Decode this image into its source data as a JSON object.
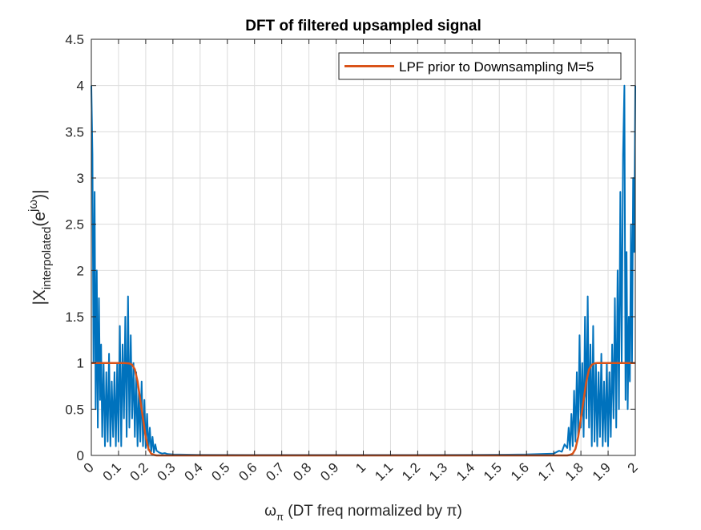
{
  "chart_data": {
    "type": "line",
    "title": "DFT of filtered upsampled signal",
    "xlabel": {
      "symbol": "ω",
      "subscript": "π",
      "text": " (DT freq normalized by π)"
    },
    "ylabel": {
      "prefix": "|X",
      "subscript": "interpolated",
      "middle": "(e",
      "superscript": "jω",
      "suffix": ")|"
    },
    "xlim": [
      0,
      2
    ],
    "ylim": [
      0,
      4.5
    ],
    "xticks": [
      0,
      0.1,
      0.2,
      0.3,
      0.4,
      0.5,
      0.6,
      0.7,
      0.8,
      0.9,
      1,
      1.1,
      1.2,
      1.3,
      1.4,
      1.5,
      1.6,
      1.7,
      1.8,
      1.9,
      2
    ],
    "xticklabels": [
      "0",
      "0.1",
      "0.2",
      "0.3",
      "0.4",
      "0.5",
      "0.6",
      "0.7",
      "0.8",
      "0.9",
      "1",
      "1.1",
      "1.2",
      "1.3",
      "1.4",
      "1.5",
      "1.6",
      "1.7",
      "1.8",
      "1.9",
      "2"
    ],
    "yticks": [
      0,
      0.5,
      1,
      1.5,
      2,
      2.5,
      3,
      3.5,
      4,
      4.5
    ],
    "yticklabels": [
      "0",
      "0.5",
      "1",
      "1.5",
      "2",
      "2.5",
      "3",
      "3.5",
      "4",
      "4.5"
    ],
    "grid": true,
    "legend_position": "top-right",
    "series": [
      {
        "style": "spectrum",
        "color": "#0072BD",
        "x": [
          0,
          0.004,
          0.008,
          0.012,
          0.016,
          0.02,
          0.024,
          0.028,
          0.032,
          0.036,
          0.04,
          0.045,
          0.05,
          0.055,
          0.06,
          0.065,
          0.07,
          0.075,
          0.08,
          0.085,
          0.09,
          0.095,
          0.1,
          0.105,
          0.11,
          0.115,
          0.12,
          0.125,
          0.13,
          0.135,
          0.14,
          0.145,
          0.15,
          0.155,
          0.16,
          0.165,
          0.17,
          0.175,
          0.18,
          0.185,
          0.19,
          0.195,
          0.2,
          0.205,
          0.21,
          0.215,
          0.22,
          0.225,
          0.23,
          0.235,
          0.24,
          0.25,
          0.26,
          0.27,
          0.28,
          0.3,
          0.4,
          0.6,
          0.8,
          1.0,
          1.2,
          1.4,
          1.6,
          1.7,
          1.72,
          1.73,
          1.74,
          1.75,
          1.755,
          1.76,
          1.765,
          1.77,
          1.775,
          1.78,
          1.785,
          1.79,
          1.795,
          1.8,
          1.805,
          1.81,
          1.815,
          1.82,
          1.825,
          1.83,
          1.835,
          1.84,
          1.845,
          1.85,
          1.855,
          1.86,
          1.865,
          1.87,
          1.875,
          1.88,
          1.885,
          1.89,
          1.895,
          1.9,
          1.905,
          1.91,
          1.915,
          1.92,
          1.925,
          1.93,
          1.935,
          1.94,
          1.945,
          1.95,
          1.955,
          1.96,
          1.964,
          1.968,
          1.972,
          1.976,
          1.98,
          1.984,
          1.988,
          1.992,
          1.996,
          2.0
        ],
        "values": [
          4.0,
          3.25,
          1.0,
          2.85,
          0.5,
          2.0,
          0.3,
          1.7,
          0.6,
          1.2,
          0.2,
          1.0,
          0.1,
          0.9,
          0.15,
          1.1,
          0.1,
          0.8,
          0.2,
          0.9,
          0.1,
          1.0,
          0.15,
          1.4,
          0.1,
          1.2,
          0.4,
          1.5,
          0.2,
          1.72,
          0.3,
          1.3,
          0.4,
          1.0,
          0.2,
          0.9,
          0.1,
          0.7,
          0.15,
          0.8,
          0.1,
          0.6,
          0.08,
          0.45,
          0.06,
          0.3,
          0.04,
          0.2,
          0.03,
          0.12,
          0.05,
          0.03,
          0.02,
          0.025,
          0.015,
          0.01,
          0.006,
          0.005,
          0.005,
          0.005,
          0.005,
          0.006,
          0.01,
          0.02,
          0.05,
          0.04,
          0.12,
          0.08,
          0.3,
          0.06,
          0.45,
          0.1,
          0.7,
          0.15,
          0.9,
          0.2,
          1.3,
          0.3,
          1.0,
          0.2,
          1.5,
          0.4,
          1.72,
          0.3,
          1.2,
          0.1,
          1.4,
          0.15,
          1.0,
          0.1,
          0.9,
          0.2,
          1.1,
          0.1,
          0.8,
          0.15,
          1.0,
          0.1,
          0.9,
          0.2,
          1.2,
          0.4,
          1.7,
          0.3,
          2.0,
          0.5,
          2.85,
          1.0,
          3.25,
          4.0,
          0.6,
          2.2,
          0.5,
          1.5,
          0.8,
          2.5,
          1.0,
          3.0,
          2.2,
          4.0
        ]
      },
      {
        "name": "LPF prior to Downsampling M=5",
        "style": "smooth",
        "color": "#D95319",
        "x": [
          0,
          0.05,
          0.1,
          0.12,
          0.14,
          0.15,
          0.16,
          0.17,
          0.18,
          0.19,
          0.2,
          0.21,
          0.22,
          0.23,
          0.24,
          0.25,
          0.3,
          0.5,
          1.0,
          1.5,
          1.7,
          1.75,
          1.76,
          1.77,
          1.78,
          1.79,
          1.8,
          1.81,
          1.82,
          1.83,
          1.84,
          1.85,
          1.86,
          1.88,
          1.9,
          1.95,
          2.0
        ],
        "values": [
          1,
          1,
          1,
          1,
          0.995,
          0.98,
          0.93,
          0.8,
          0.6,
          0.4,
          0.2,
          0.07,
          0.02,
          0.005,
          0,
          0,
          0,
          0,
          0,
          0,
          0,
          0,
          0.005,
          0.02,
          0.07,
          0.2,
          0.4,
          0.6,
          0.8,
          0.93,
          0.98,
          0.995,
          1,
          1,
          1,
          1,
          1
        ]
      }
    ]
  }
}
